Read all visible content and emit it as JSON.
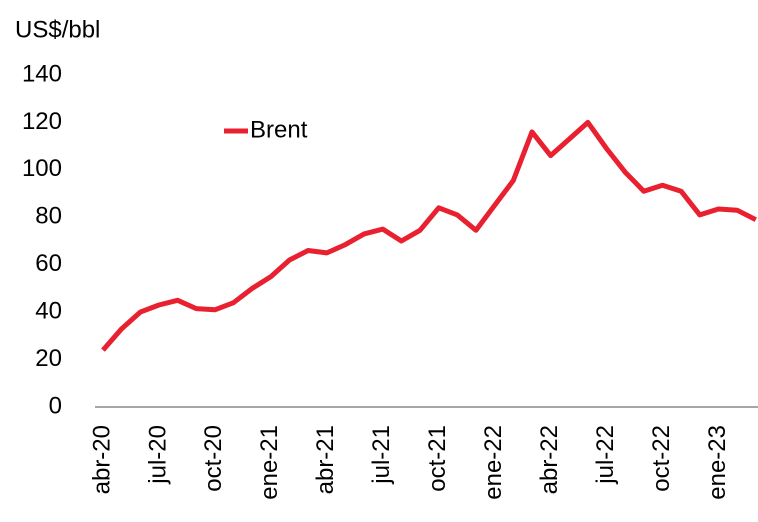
{
  "chart_data": {
    "type": "line",
    "ylabel": "US$/bbl",
    "categories": [
      "abr-20",
      null,
      null,
      "jul-20",
      null,
      null,
      "oct-20",
      null,
      null,
      "ene-21",
      null,
      null,
      "abr-21",
      null,
      null,
      "jul-21",
      null,
      null,
      "oct-21",
      null,
      null,
      "ene-22",
      null,
      null,
      "abr-22",
      null,
      null,
      "jul-22",
      null,
      null,
      "oct-22",
      null,
      null,
      "ene-23",
      null,
      null
    ],
    "series": [
      {
        "name": "Brent",
        "color": "#e8202f",
        "values": [
          24,
          33,
          40,
          43,
          45,
          41.5,
          41,
          44,
          50,
          55,
          62,
          66,
          65,
          68.5,
          73,
          75,
          70,
          74.5,
          84,
          81,
          74.5,
          85,
          95.5,
          116,
          106,
          113,
          120,
          109,
          99,
          91,
          93.5,
          91,
          81,
          83.5,
          83,
          79
        ]
      }
    ],
    "ylim": [
      0,
      140
    ],
    "yticks": [
      0,
      20,
      40,
      60,
      80,
      100,
      120,
      140
    ],
    "grid": false,
    "legend": "top-left"
  }
}
